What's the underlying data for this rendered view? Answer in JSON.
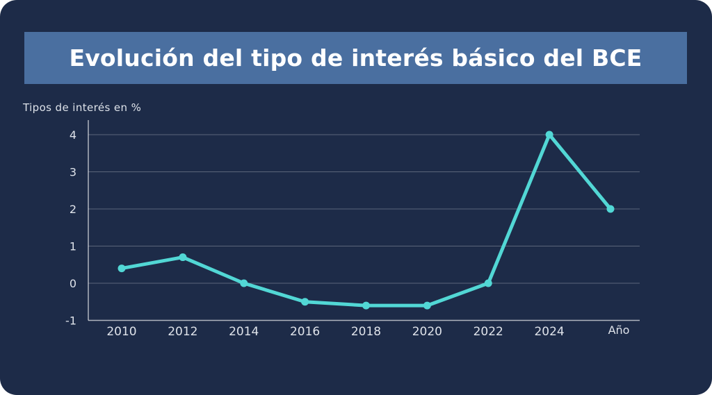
{
  "header": {
    "title": "Evolución del tipo de interés básico del BCE"
  },
  "chart_data": {
    "type": "line",
    "title": "Evolución del tipo de interés básico del BCE",
    "ylabel": "Tipos de interés en %",
    "xlabel": "Año",
    "categories": [
      "2010",
      "2012",
      "2014",
      "2016",
      "2018",
      "2020",
      "2022",
      "2024",
      ""
    ],
    "values": [
      0.4,
      0.7,
      0,
      -0.5,
      -0.6,
      -0.6,
      0,
      4,
      2
    ],
    "ylim": [
      -1,
      4
    ],
    "yticks": [
      4,
      3,
      2,
      1,
      0,
      -1
    ],
    "grid": true,
    "legend": false
  },
  "colors": {
    "background": "#1d2b48",
    "banner": "#4a6fa0",
    "line": "#52d7d5",
    "grid": "rgba(255,255,255,0.28)",
    "axis": "rgba(255,255,255,0.65)",
    "tick_text": "#dfe3ea",
    "title_text": "#ffffff"
  }
}
